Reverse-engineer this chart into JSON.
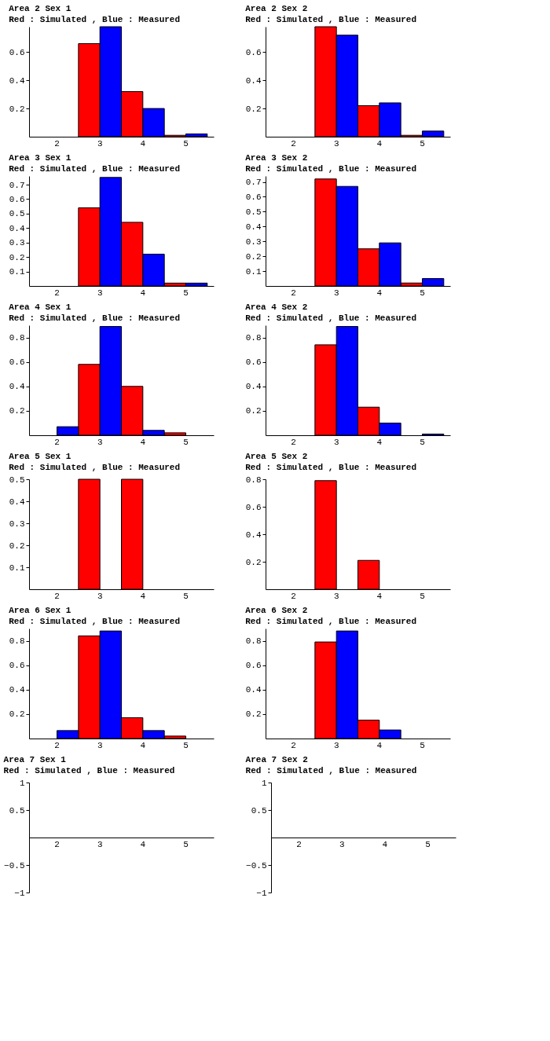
{
  "chart_data": [
    {
      "type": "bar",
      "title": "Area  2   Sex  1",
      "subtitle": "Red :  Simulated  , Blue : Measured",
      "categories": [
        "2",
        "3",
        "4",
        "5"
      ],
      "ylim": [
        0,
        0.78
      ],
      "yticks": [
        0.2,
        0.4,
        0.6
      ],
      "grid": false,
      "legend": false,
      "series": [
        {
          "color": "#ff0000",
          "values": [
            null,
            0.66,
            0.32,
            0.01
          ]
        },
        {
          "color": "#0000ff",
          "values": [
            null,
            0.78,
            0.2,
            0.02
          ]
        }
      ]
    },
    {
      "type": "bar",
      "title": "Area  2   Sex  2",
      "subtitle": "Red :  Simulated  , Blue : Measured",
      "categories": [
        "2",
        "3",
        "4",
        "5"
      ],
      "ylim": [
        0,
        0.78
      ],
      "yticks": [
        0.2,
        0.4,
        0.6
      ],
      "grid": false,
      "legend": false,
      "series": [
        {
          "color": "#ff0000",
          "values": [
            null,
            0.78,
            0.22,
            0.01
          ]
        },
        {
          "color": "#0000ff",
          "values": [
            null,
            0.72,
            0.24,
            0.04
          ]
        }
      ]
    },
    {
      "type": "bar",
      "title": "Area  3   Sex  1",
      "subtitle": "Red :  Simulated  , Blue : Measured",
      "categories": [
        "2",
        "3",
        "4",
        "5"
      ],
      "ylim": [
        0,
        0.76
      ],
      "yticks": [
        0.1,
        0.2,
        0.3,
        0.4,
        0.5,
        0.6,
        0.7
      ],
      "grid": false,
      "legend": false,
      "series": [
        {
          "color": "#ff0000",
          "values": [
            null,
            0.54,
            0.44,
            0.02
          ]
        },
        {
          "color": "#0000ff",
          "values": [
            null,
            0.75,
            0.22,
            0.02
          ]
        }
      ]
    },
    {
      "type": "bar",
      "title": "Area  3   Sex  2",
      "subtitle": "Red :  Simulated  , Blue : Measured",
      "categories": [
        "2",
        "3",
        "4",
        "5"
      ],
      "ylim": [
        0,
        0.74
      ],
      "yticks": [
        0.1,
        0.2,
        0.3,
        0.4,
        0.5,
        0.6,
        0.7
      ],
      "grid": false,
      "legend": false,
      "series": [
        {
          "color": "#ff0000",
          "values": [
            null,
            0.72,
            0.25,
            0.02
          ]
        },
        {
          "color": "#0000ff",
          "values": [
            null,
            0.67,
            0.29,
            0.05
          ]
        }
      ]
    },
    {
      "type": "bar",
      "title": "Area  4   Sex  1",
      "subtitle": "Red :  Simulated  , Blue : Measured",
      "categories": [
        "2",
        "3",
        "4",
        "5"
      ],
      "ylim": [
        0,
        0.9
      ],
      "yticks": [
        0.2,
        0.4,
        0.6,
        0.8
      ],
      "grid": false,
      "legend": false,
      "series": [
        {
          "color": "#ff0000",
          "values": [
            null,
            0.58,
            0.4,
            0.02
          ]
        },
        {
          "color": "#0000ff",
          "values": [
            0.07,
            0.89,
            0.04,
            null
          ]
        }
      ]
    },
    {
      "type": "bar",
      "title": "Area  4   Sex  2",
      "subtitle": "Red :  Simulated  , Blue : Measured",
      "categories": [
        "2",
        "3",
        "4",
        "5"
      ],
      "ylim": [
        0,
        0.9
      ],
      "yticks": [
        0.2,
        0.4,
        0.6,
        0.8
      ],
      "grid": false,
      "legend": false,
      "series": [
        {
          "color": "#ff0000",
          "values": [
            null,
            0.74,
            0.23,
            null
          ]
        },
        {
          "color": "#0000ff",
          "values": [
            null,
            0.89,
            0.1,
            0.01
          ]
        }
      ]
    },
    {
      "type": "bar",
      "title": "Area  5   Sex  1",
      "subtitle": "Red :  Simulated  , Blue : Measured",
      "categories": [
        "2",
        "3",
        "4",
        "5"
      ],
      "ylim": [
        0,
        0.5
      ],
      "yticks": [
        0.1,
        0.2,
        0.3,
        0.4,
        0.5
      ],
      "grid": false,
      "legend": false,
      "series": [
        {
          "color": "#ff0000",
          "values": [
            null,
            0.5,
            0.5,
            null
          ]
        },
        {
          "color": "#0000ff",
          "values": [
            null,
            null,
            null,
            null
          ]
        }
      ]
    },
    {
      "type": "bar",
      "title": "Area  5   Sex  2",
      "subtitle": "Red :  Simulated  , Blue : Measured",
      "categories": [
        "2",
        "3",
        "4",
        "5"
      ],
      "ylim": [
        0,
        0.8
      ],
      "yticks": [
        0.2,
        0.4,
        0.6,
        0.8
      ],
      "grid": false,
      "legend": false,
      "series": [
        {
          "color": "#ff0000",
          "values": [
            null,
            0.79,
            0.21,
            null
          ]
        },
        {
          "color": "#0000ff",
          "values": [
            null,
            null,
            null,
            null
          ]
        }
      ]
    },
    {
      "type": "bar",
      "title": "Area  6   Sex  1",
      "subtitle": "Red :  Simulated  , Blue : Measured",
      "categories": [
        "2",
        "3",
        "4",
        "5"
      ],
      "ylim": [
        0,
        0.9
      ],
      "yticks": [
        0.2,
        0.4,
        0.6,
        0.8
      ],
      "grid": false,
      "legend": false,
      "series": [
        {
          "color": "#ff0000",
          "values": [
            null,
            0.84,
            0.17,
            0.02
          ]
        },
        {
          "color": "#0000ff",
          "values": [
            0.065,
            0.88,
            0.065,
            null
          ]
        }
      ]
    },
    {
      "type": "bar",
      "title": "Area  6   Sex  2",
      "subtitle": "Red :  Simulated  , Blue : Measured",
      "categories": [
        "2",
        "3",
        "4",
        "5"
      ],
      "ylim": [
        0,
        0.9
      ],
      "yticks": [
        0.2,
        0.4,
        0.6,
        0.8
      ],
      "grid": false,
      "legend": false,
      "series": [
        {
          "color": "#ff0000",
          "values": [
            null,
            0.79,
            0.15,
            null
          ]
        },
        {
          "color": "#0000ff",
          "values": [
            null,
            0.88,
            0.07,
            null
          ]
        }
      ]
    },
    {
      "type": "bar",
      "title": "Area  7   Sex  1",
      "subtitle": "Red :  Simulated  , Blue : Measured",
      "categories": [
        "2",
        "3",
        "4",
        "5"
      ],
      "ylim": [
        -1,
        1
      ],
      "yticks": [
        -1,
        -0.5,
        0.5,
        1
      ],
      "grid": false,
      "legend": false,
      "series": [
        {
          "color": "#ff0000",
          "values": [
            null,
            null,
            null,
            null
          ]
        },
        {
          "color": "#0000ff",
          "values": [
            null,
            null,
            null,
            null
          ]
        }
      ]
    },
    {
      "type": "bar",
      "title": "Area  7   Sex  2",
      "subtitle": "Red :  Simulated  , Blue : Measured",
      "categories": [
        "2",
        "3",
        "4",
        "5"
      ],
      "ylim": [
        -1,
        1
      ],
      "yticks": [
        -1,
        -0.5,
        0.5,
        1
      ],
      "grid": false,
      "legend": false,
      "series": [
        {
          "color": "#ff0000",
          "values": [
            null,
            null,
            null,
            null
          ]
        },
        {
          "color": "#0000ff",
          "values": [
            null,
            null,
            null,
            null
          ]
        }
      ]
    }
  ]
}
